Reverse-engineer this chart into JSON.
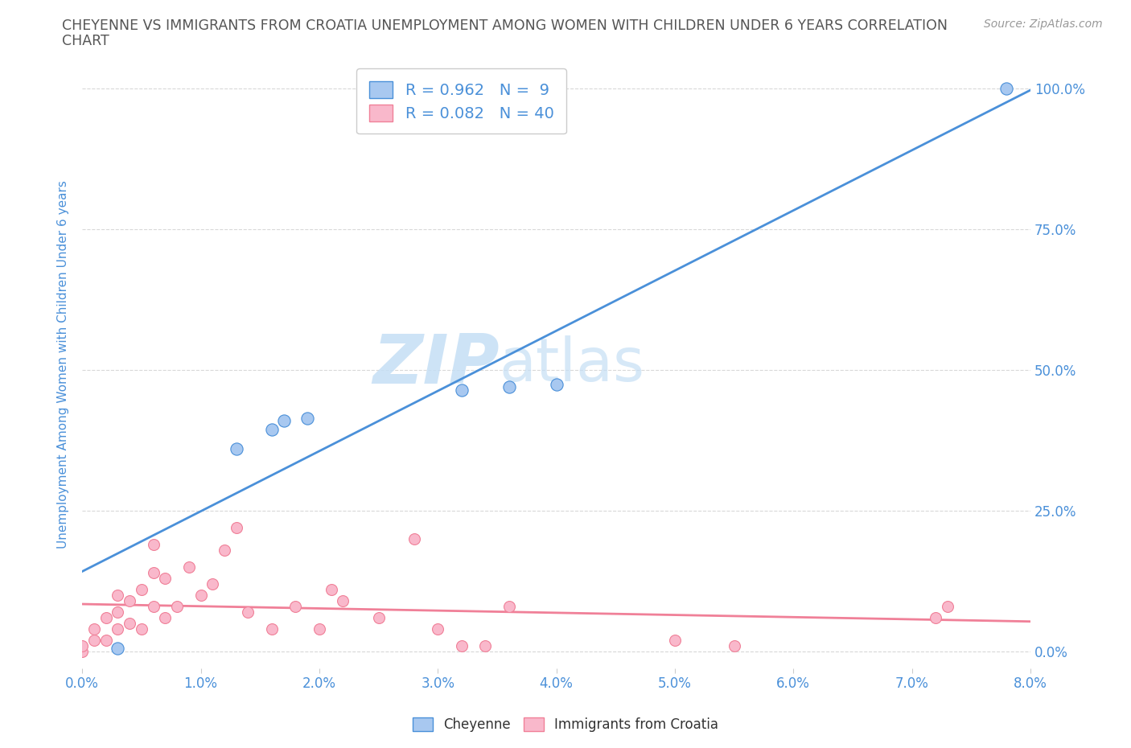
{
  "title_line1": "CHEYENNE VS IMMIGRANTS FROM CROATIA UNEMPLOYMENT AMONG WOMEN WITH CHILDREN UNDER 6 YEARS CORRELATION",
  "title_line2": "CHART",
  "source": "Source: ZipAtlas.com",
  "ylabel_label": "Unemployment Among Women with Children Under 6 years",
  "legend_label1": "Cheyenne",
  "legend_label2": "Immigrants from Croatia",
  "R1": 0.962,
  "N1": 9,
  "R2": 0.082,
  "N2": 40,
  "color1": "#a8c8f0",
  "color2": "#f9b8cb",
  "line1_color": "#4a90d9",
  "line2_color": "#f08098",
  "cheyenne_x": [
    0.003,
    0.013,
    0.016,
    0.017,
    0.019,
    0.032,
    0.036,
    0.04,
    0.078
  ],
  "cheyenne_y": [
    0.005,
    0.36,
    0.395,
    0.41,
    0.415,
    0.465,
    0.47,
    0.475,
    1.0
  ],
  "croatia_x": [
    0.0,
    0.0,
    0.001,
    0.001,
    0.002,
    0.002,
    0.003,
    0.003,
    0.003,
    0.004,
    0.004,
    0.005,
    0.005,
    0.006,
    0.006,
    0.006,
    0.007,
    0.007,
    0.008,
    0.009,
    0.01,
    0.011,
    0.012,
    0.013,
    0.014,
    0.016,
    0.018,
    0.02,
    0.021,
    0.022,
    0.025,
    0.028,
    0.03,
    0.032,
    0.034,
    0.036,
    0.05,
    0.055,
    0.072,
    0.073
  ],
  "croatia_y": [
    0.0,
    0.01,
    0.02,
    0.04,
    0.02,
    0.06,
    0.04,
    0.07,
    0.1,
    0.05,
    0.09,
    0.04,
    0.11,
    0.08,
    0.14,
    0.19,
    0.06,
    0.13,
    0.08,
    0.15,
    0.1,
    0.12,
    0.18,
    0.22,
    0.07,
    0.04,
    0.08,
    0.04,
    0.11,
    0.09,
    0.06,
    0.2,
    0.04,
    0.01,
    0.01,
    0.08,
    0.02,
    0.01,
    0.06,
    0.08
  ],
  "watermark_zip": "ZIP",
  "watermark_atlas": "atlas",
  "background_color": "#ffffff",
  "grid_color": "#d8d8d8",
  "title_color": "#555555",
  "axis_label_color": "#4a90d9",
  "tick_color": "#4a90d9",
  "xlim": [
    0.0,
    0.08
  ],
  "ylim": [
    0.0,
    1.05
  ],
  "y_tick_vals": [
    0.0,
    0.25,
    0.5,
    0.75,
    1.0
  ],
  "y_tick_labels": [
    "0.0%",
    "25.0%",
    "50.0%",
    "75.0%",
    "100.0%"
  ],
  "x_tick_vals": [
    0.0,
    0.01,
    0.02,
    0.03,
    0.04,
    0.05,
    0.06,
    0.07,
    0.08
  ],
  "x_tick_labels": [
    "0.0%",
    "1.0%",
    "2.0%",
    "3.0%",
    "4.0%",
    "5.0%",
    "6.0%",
    "7.0%",
    "8.0%"
  ]
}
